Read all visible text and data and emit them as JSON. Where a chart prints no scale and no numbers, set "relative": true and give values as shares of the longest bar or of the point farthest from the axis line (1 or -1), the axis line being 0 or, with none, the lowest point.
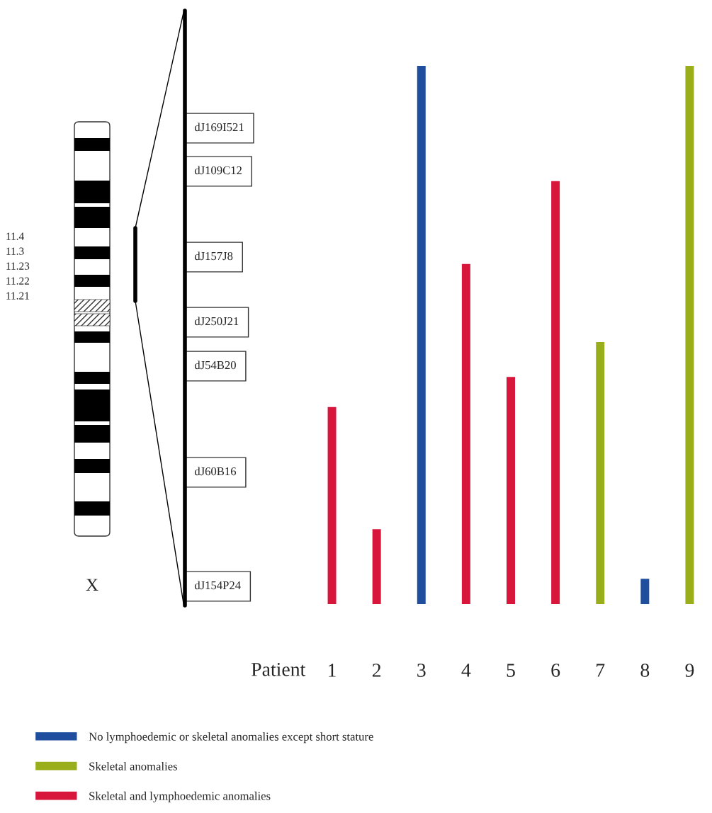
{
  "chart_data": {
    "type": "bar",
    "relative": true,
    "xlabel": "Patient",
    "categories": [
      "1",
      "2",
      "3",
      "4",
      "5",
      "6",
      "7",
      "8",
      "9"
    ],
    "series": [
      {
        "name": "No lymphoedemic or skeletal anomalies except short stature",
        "color": "#1f4e9e",
        "values": [
          null,
          null,
          1,
          null,
          null,
          null,
          null,
          0.047,
          null
        ]
      },
      {
        "name": "Skeletal anomalies",
        "color": "#9aae1c",
        "values": [
          null,
          null,
          null,
          null,
          null,
          null,
          0.487,
          null,
          1
        ]
      },
      {
        "name": "Skeletal and lymphoedemic anomalies",
        "color": "#d8163c",
        "values": [
          0.366,
          0.139,
          null,
          0.632,
          0.422,
          0.786,
          null,
          null,
          null
        ]
      }
    ],
    "annotations": [
      "dJ169I521",
      "dJ109C12",
      "dJ157J8",
      "dJ250J21",
      "dJ54B20",
      "dJ60B16",
      "dJ154P24",
      "11.4",
      "11.3",
      "11.23",
      "11.22",
      "11.21",
      "X"
    ],
    "legend": "bottom",
    "grid": false
  }
}
